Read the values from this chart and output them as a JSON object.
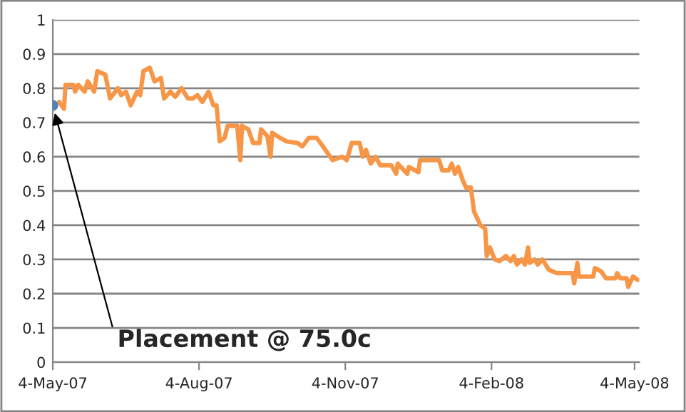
{
  "chart_data": {
    "type": "line",
    "xlim": [
      "2007-05-04",
      "2008-05-07"
    ],
    "xticks": [
      {
        "value": "2007-05-04",
        "label": "4-May-07"
      },
      {
        "value": "2007-08-04",
        "label": "4-Aug-07"
      },
      {
        "value": "2007-11-04",
        "label": "4-Nov-07"
      },
      {
        "value": "2008-02-04",
        "label": "4-Feb-08"
      },
      {
        "value": "2008-05-04",
        "label": "4-May-08"
      }
    ],
    "ylim": [
      0,
      1
    ],
    "yticks": [
      0,
      0.1,
      0.2,
      0.3,
      0.4,
      0.5,
      0.6,
      0.7,
      0.8,
      0.9,
      1
    ],
    "grid": "y",
    "annotations": [
      {
        "text": "Placement @ 75.0c",
        "x": "2007-05-04",
        "y": 0.75
      }
    ],
    "series": [
      {
        "color": "#f79646",
        "x": [
          "2007-05-08",
          "2007-05-11",
          "2007-05-12",
          "2007-05-17",
          "2007-05-18",
          "2007-05-20",
          "2007-05-24",
          "2007-05-26",
          "2007-05-30",
          "2007-06-01",
          "2007-06-06",
          "2007-06-09",
          "2007-06-14",
          "2007-06-16",
          "2007-06-19",
          "2007-06-22",
          "2007-06-26",
          "2007-06-28",
          "2007-06-30",
          "2007-07-04",
          "2007-07-07",
          "2007-07-11",
          "2007-07-13",
          "2007-07-17",
          "2007-07-20",
          "2007-07-24",
          "2007-07-28",
          "2007-07-31",
          "2007-08-03",
          "2007-08-06",
          "2007-08-10",
          "2007-08-13",
          "2007-08-15",
          "2007-08-17",
          "2007-08-20",
          "2007-08-22",
          "2007-08-28",
          "2007-08-30",
          "2007-08-31",
          "2007-09-04",
          "2007-09-07",
          "2007-09-11",
          "2007-09-12",
          "2007-09-16",
          "2007-09-18",
          "2007-09-19",
          "2007-09-24",
          "2007-09-28",
          "2007-10-05",
          "2007-10-08",
          "2007-10-12",
          "2007-10-17",
          "2007-10-21",
          "2007-10-27",
          "2007-11-02",
          "2007-11-05",
          "2007-11-08",
          "2007-11-13",
          "2007-11-15",
          "2007-11-17",
          "2007-11-20",
          "2007-11-23",
          "2007-11-26",
          "2007-12-03",
          "2007-12-06",
          "2007-12-07",
          "2007-12-13",
          "2007-12-14",
          "2007-12-20",
          "2007-12-21",
          "2008-01-02",
          "2008-01-04",
          "2008-01-08",
          "2008-01-10",
          "2008-01-12",
          "2008-01-14",
          "2008-01-17",
          "2008-01-19",
          "2008-01-22",
          "2008-01-24",
          "2008-01-26",
          "2008-01-28",
          "2008-01-31",
          "2008-02-01",
          "2008-02-03",
          "2008-02-06",
          "2008-02-09",
          "2008-02-13",
          "2008-02-16",
          "2008-02-18",
          "2008-02-20",
          "2008-02-23",
          "2008-02-25",
          "2008-02-27",
          "2008-02-28",
          "2008-03-02",
          "2008-03-04",
          "2008-03-07",
          "2008-03-11",
          "2008-03-16",
          "2008-03-26",
          "2008-03-27",
          "2008-03-29",
          "2008-03-30",
          "2008-04-08",
          "2008-04-09",
          "2008-04-13",
          "2008-04-16",
          "2008-04-22",
          "2008-04-23",
          "2008-04-25",
          "2008-04-29",
          "2008-04-30",
          "2008-05-03",
          "2008-05-06"
        ],
        "values": [
          0.76,
          0.74,
          0.81,
          0.81,
          0.79,
          0.81,
          0.79,
          0.82,
          0.79,
          0.85,
          0.84,
          0.77,
          0.8,
          0.78,
          0.79,
          0.75,
          0.79,
          0.78,
          0.85,
          0.86,
          0.82,
          0.83,
          0.77,
          0.79,
          0.775,
          0.8,
          0.77,
          0.77,
          0.78,
          0.76,
          0.79,
          0.75,
          0.75,
          0.645,
          0.655,
          0.69,
          0.69,
          0.59,
          0.69,
          0.68,
          0.64,
          0.64,
          0.68,
          0.66,
          0.6,
          0.67,
          0.655,
          0.645,
          0.64,
          0.63,
          0.655,
          0.655,
          0.63,
          0.59,
          0.6,
          0.59,
          0.64,
          0.64,
          0.6,
          0.62,
          0.58,
          0.6,
          0.575,
          0.575,
          0.55,
          0.58,
          0.55,
          0.57,
          0.555,
          0.59,
          0.59,
          0.56,
          0.56,
          0.58,
          0.55,
          0.57,
          0.53,
          0.51,
          0.51,
          0.44,
          0.42,
          0.4,
          0.39,
          0.31,
          0.335,
          0.3,
          0.295,
          0.31,
          0.295,
          0.31,
          0.285,
          0.3,
          0.285,
          0.335,
          0.29,
          0.3,
          0.285,
          0.3,
          0.27,
          0.26,
          0.26,
          0.23,
          0.29,
          0.25,
          0.25,
          0.275,
          0.265,
          0.245,
          0.245,
          0.26,
          0.245,
          0.245,
          0.22,
          0.25,
          0.24
        ]
      },
      {
        "type": "scatter",
        "color": "#4f81bd",
        "x": [
          "2007-05-04"
        ],
        "values": [
          0.75
        ]
      }
    ]
  }
}
